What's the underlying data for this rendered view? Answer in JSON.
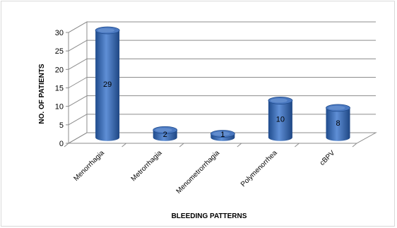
{
  "chart_data": {
    "type": "bar",
    "style": "3d-cylinder",
    "categories": [
      "Menorrhagia",
      "Metrorrhagia",
      "Menometrorrhagia",
      "Polymenorrhea",
      "cBPV"
    ],
    "values": [
      29,
      2,
      1,
      10,
      8
    ],
    "data_labels": [
      "29",
      "2",
      "1",
      "10",
      "8"
    ],
    "title": "",
    "xlabel": "BLEEDING PATTERNS",
    "ylabel": "NO. OF PATIENTS",
    "ylim": [
      0,
      30
    ],
    "yticks": [
      "0",
      "5",
      "10",
      "15",
      "20",
      "25",
      "30"
    ],
    "grid": true,
    "legend": "none",
    "colors": {
      "bar": "#4a78c0",
      "bar_dark": "#1f4b8c",
      "bar_light": "#8db1e6",
      "grid": "#8c8c8c"
    }
  }
}
